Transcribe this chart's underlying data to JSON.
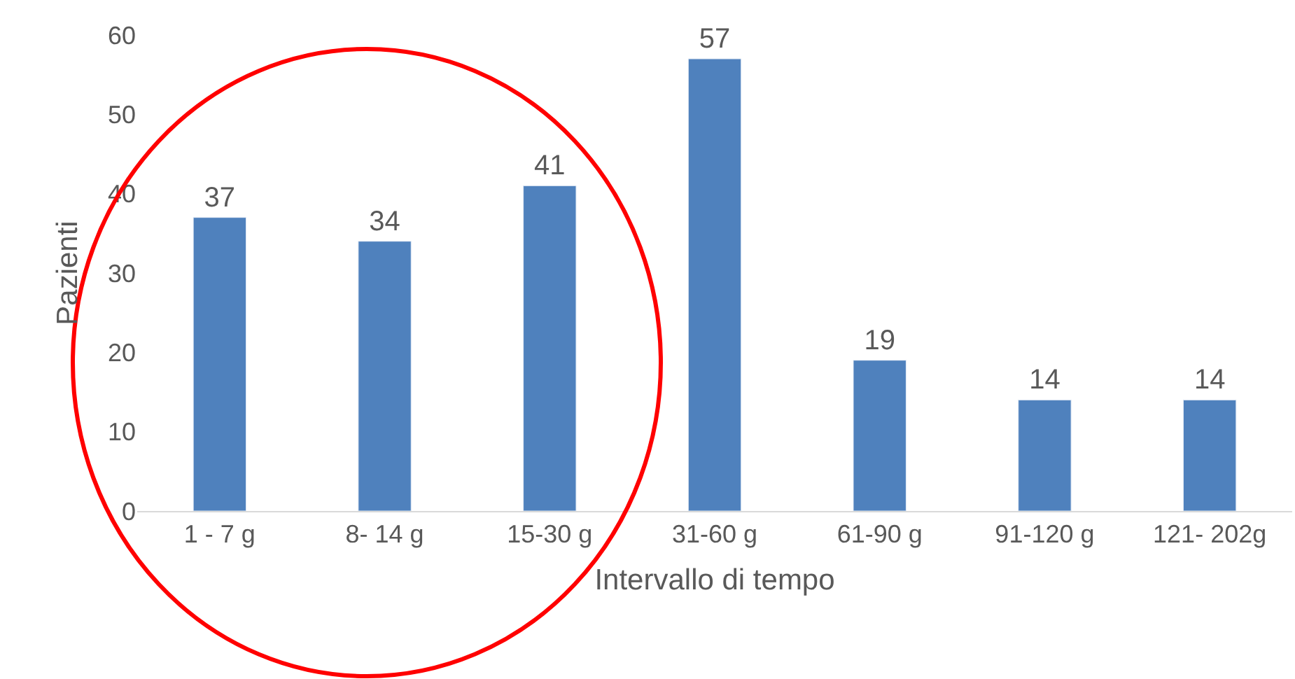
{
  "chart_data": {
    "type": "bar",
    "xlabel": "Intervallo di tempo",
    "ylabel": "Pazienti",
    "categories": [
      "1 - 7 g",
      "8- 14 g",
      "15-30 g",
      "31-60 g",
      "61-90 g",
      "91-120 g",
      "121- 202g"
    ],
    "values": [
      37,
      34,
      41,
      57,
      19,
      14,
      14
    ],
    "color": "#4f81bd",
    "ylim": [
      0,
      60
    ],
    "yticks": [
      0,
      10,
      20,
      30,
      40,
      50,
      60
    ],
    "legend": false,
    "data_labels": true
  }
}
